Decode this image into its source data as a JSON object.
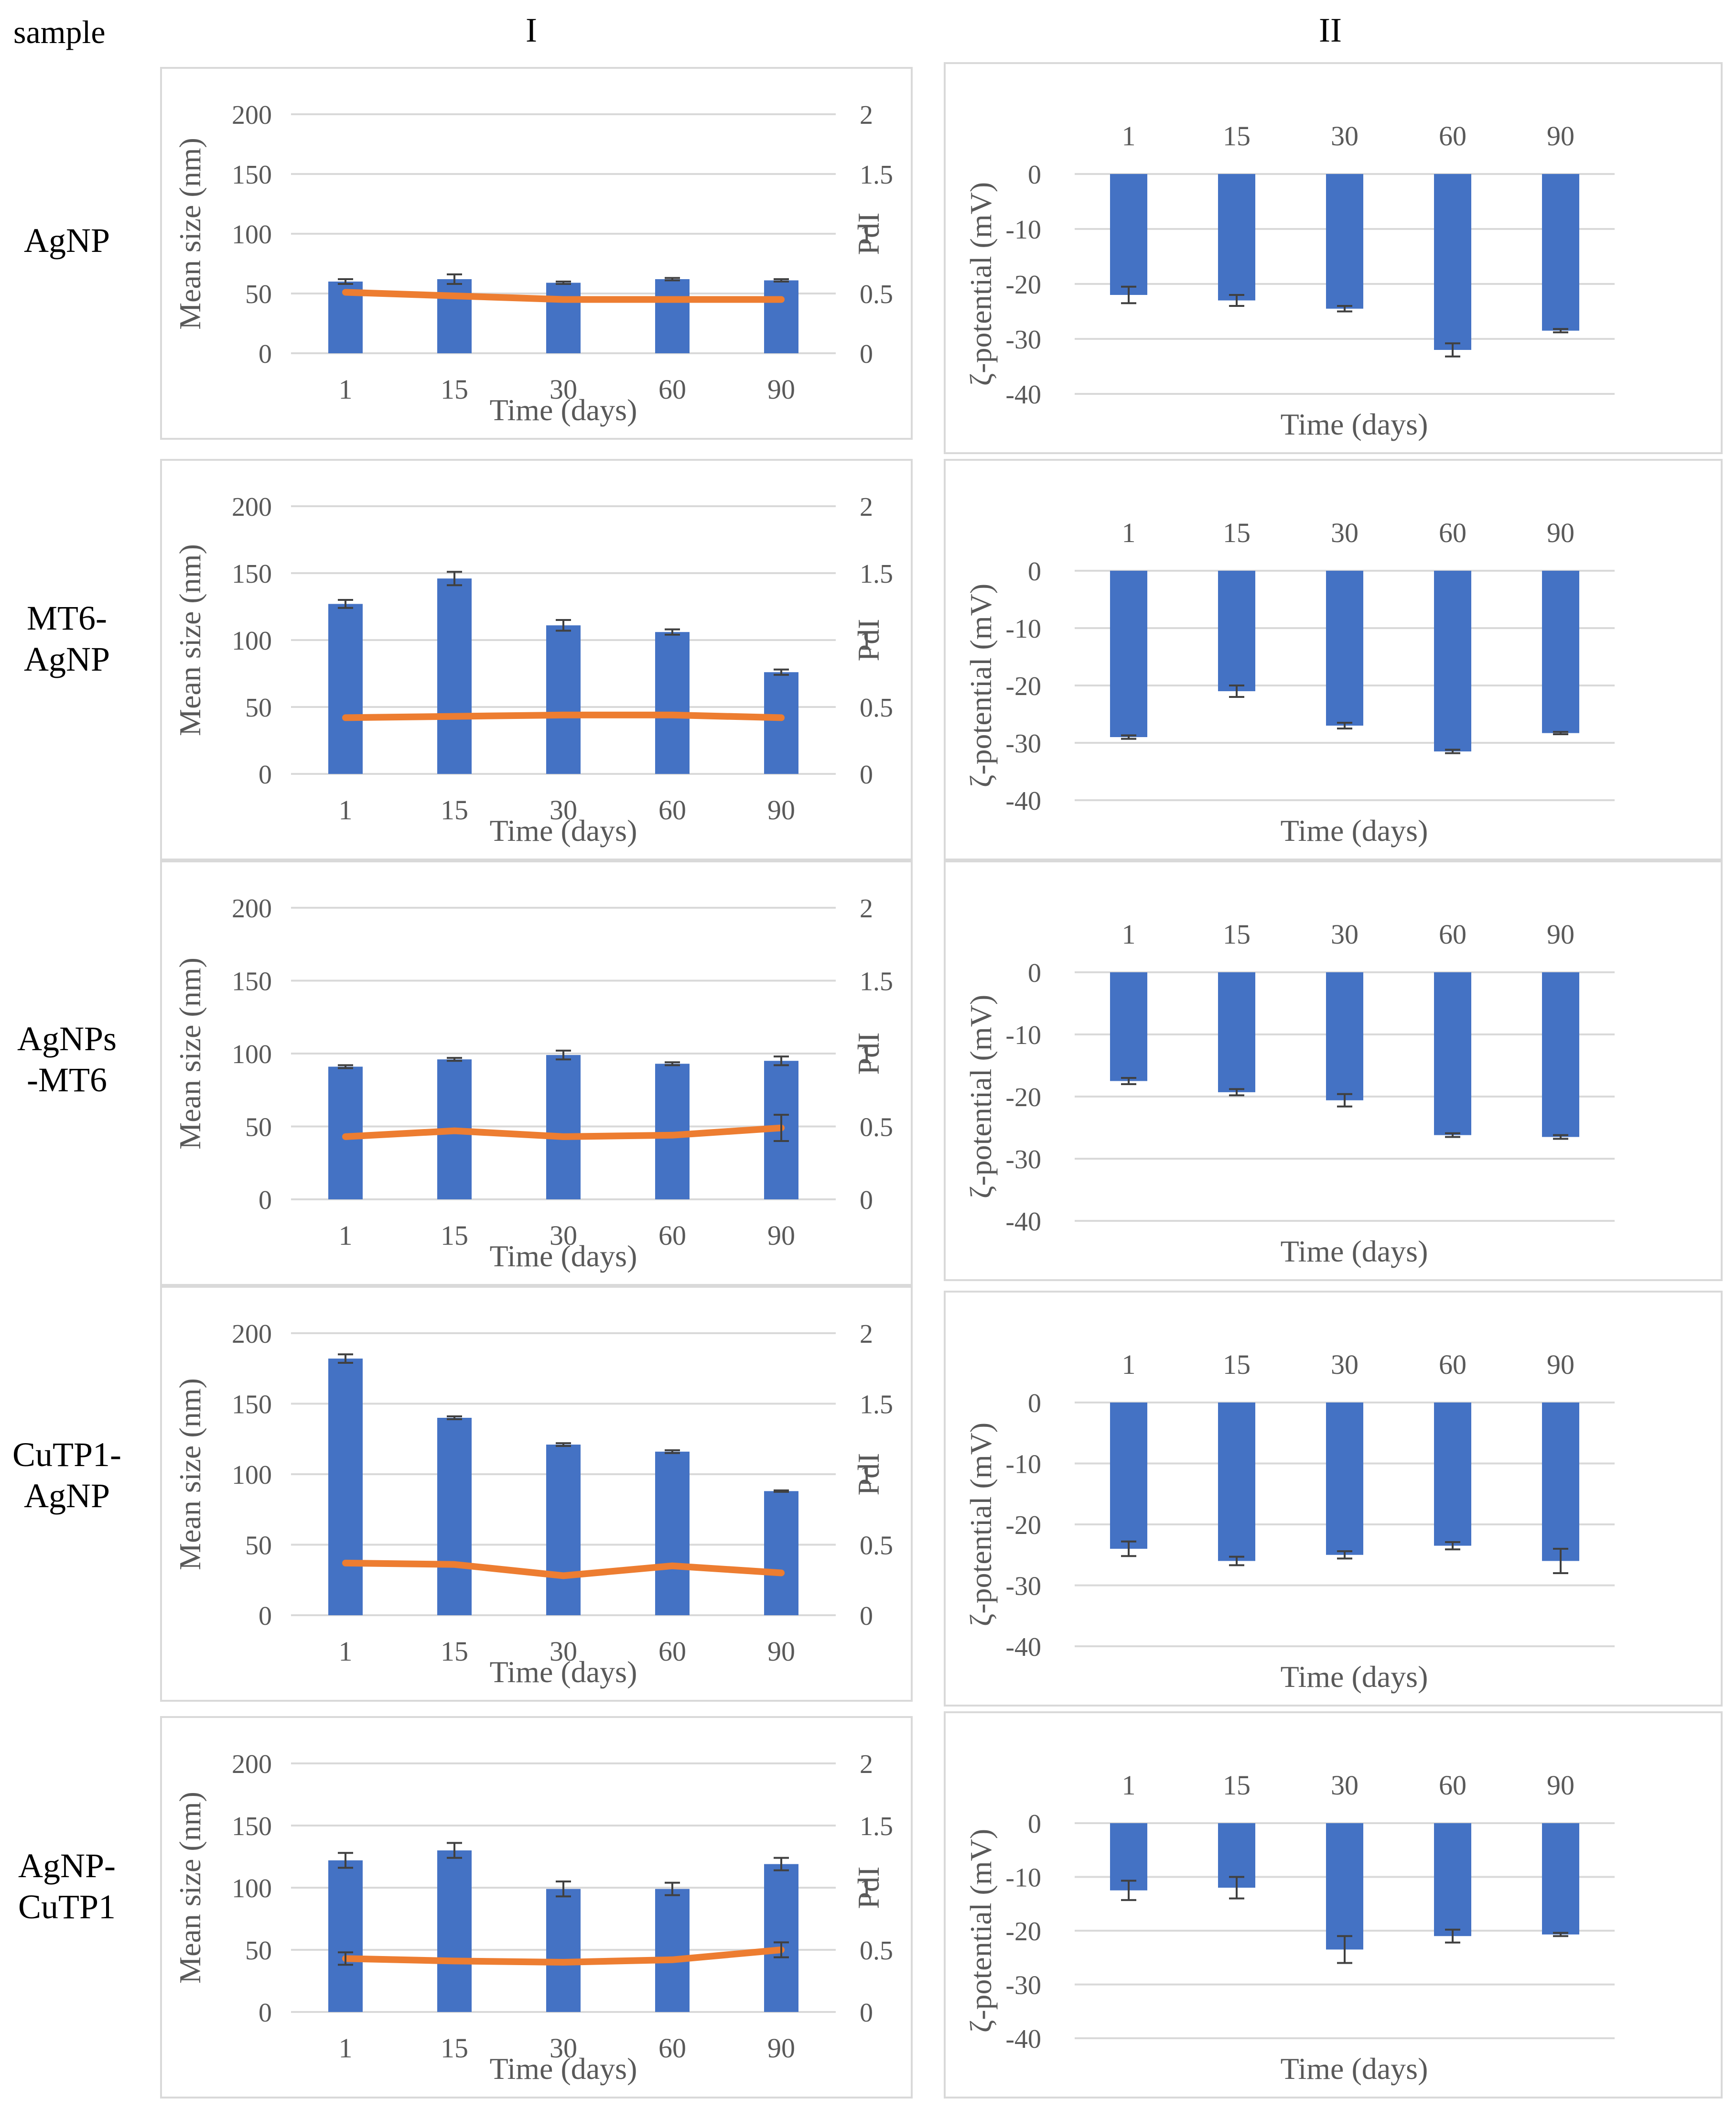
{
  "headers": {
    "sample": "sample",
    "col1": "I",
    "col2": "II"
  },
  "colors": {
    "bar": "#4472c4",
    "line": "#ed7d31",
    "error": "#404040",
    "grid": "#d9d9d9"
  },
  "chart_data": [
    {
      "sample": "AgNP",
      "size_pdi": {
        "type": "bar",
        "categories": [
          "1",
          "15",
          "30",
          "60",
          "90"
        ],
        "series": [
          {
            "name": "Mean size (nm)",
            "values": [
              60,
              62,
              59,
              62,
              61
            ],
            "errors": [
              2,
              4,
              1,
              1,
              1
            ]
          },
          {
            "name": "PdI",
            "type": "line",
            "values": [
              0.51,
              0.48,
              0.45,
              0.45,
              0.45
            ]
          }
        ],
        "xlabel": "Time (days)",
        "ylabel": "Mean size (nm)",
        "y2label": "PdI",
        "ylim": [
          0,
          200
        ],
        "y2lim": [
          0,
          2
        ],
        "yticks": [
          "200",
          "150",
          "100",
          "50",
          "0"
        ],
        "y2ticks": [
          "2",
          "1.5",
          "1",
          "0.5",
          "0"
        ]
      },
      "zeta": {
        "type": "bar",
        "categories": [
          "1",
          "15",
          "30",
          "60",
          "90"
        ],
        "series": [
          {
            "name": "ζ-potential (mV)",
            "values": [
              -22,
              -23,
              -24.5,
              -32,
              -28.5
            ],
            "errors": [
              1.5,
              1,
              0.5,
              1.2,
              0.3
            ]
          }
        ],
        "xlabel": "Time (days)",
        "ylabel": "ζ-potential (mV)",
        "ylim": [
          -40,
          0
        ],
        "yticks": [
          "0",
          "-10",
          "-20",
          "-30",
          "-40"
        ]
      }
    },
    {
      "sample": "MT6-\nAgNP",
      "size_pdi": {
        "type": "bar",
        "categories": [
          "1",
          "15",
          "30",
          "60",
          "90"
        ],
        "series": [
          {
            "name": "Mean size (nm)",
            "values": [
              127,
              146,
              111,
              106,
              76
            ],
            "errors": [
              3,
              5,
              4,
              2,
              2
            ]
          },
          {
            "name": "PdI",
            "type": "line",
            "values": [
              0.42,
              0.43,
              0.44,
              0.44,
              0.42
            ]
          }
        ],
        "xlabel": "Time (days)",
        "ylabel": "Mean size (nm)",
        "y2label": "PdI",
        "ylim": [
          0,
          200
        ],
        "y2lim": [
          0,
          2
        ],
        "yticks": [
          "200",
          "150",
          "100",
          "50",
          "0"
        ],
        "y2ticks": [
          "2",
          "1.5",
          "1",
          "0.5",
          "0"
        ]
      },
      "zeta": {
        "type": "bar",
        "categories": [
          "1",
          "15",
          "30",
          "60",
          "90"
        ],
        "series": [
          {
            "name": "ζ-potential (mV)",
            "values": [
              -29,
              -21,
              -27,
              -31.5,
              -28.3
            ],
            "errors": [
              0.3,
              1,
              0.5,
              0.3,
              0.2
            ]
          }
        ],
        "xlabel": "Time (days)",
        "ylabel": "ζ-potential (mV)",
        "ylim": [
          -40,
          0
        ],
        "yticks": [
          "0",
          "-10",
          "-20",
          "-30",
          "-40"
        ]
      }
    },
    {
      "sample": "AgNPs\n-MT6",
      "size_pdi": {
        "type": "bar",
        "categories": [
          "1",
          "15",
          "30",
          "60",
          "90"
        ],
        "series": [
          {
            "name": "Mean size (nm)",
            "values": [
              91,
              96,
              99,
              93,
              95
            ],
            "errors": [
              1,
              1,
              3,
              1,
              3
            ]
          },
          {
            "name": "PdI",
            "type": "line",
            "values": [
              0.43,
              0.47,
              0.43,
              0.44,
              0.49
            ],
            "errors": [
              0,
              0,
              0,
              0,
              0.09
            ]
          }
        ],
        "xlabel": "Time (days)",
        "ylabel": "Mean size (nm)",
        "y2label": "PdI",
        "ylim": [
          0,
          200
        ],
        "y2lim": [
          0,
          2
        ],
        "yticks": [
          "200",
          "150",
          "100",
          "50",
          "0"
        ],
        "y2ticks": [
          "2",
          "1.5",
          "1",
          "0.5",
          "0"
        ]
      },
      "zeta": {
        "type": "bar",
        "categories": [
          "1",
          "15",
          "30",
          "60",
          "90"
        ],
        "series": [
          {
            "name": "ζ-potential (mV)",
            "values": [
              -17.5,
              -19.3,
              -20.6,
              -26.2,
              -26.5
            ],
            "errors": [
              0.5,
              0.5,
              1,
              0.3,
              0.3
            ]
          }
        ],
        "xlabel": "Time (days)",
        "ylabel": "ζ-potential (mV)",
        "ylim": [
          -40,
          0
        ],
        "yticks": [
          "0",
          "-10",
          "-20",
          "-30",
          "-40"
        ]
      }
    },
    {
      "sample": "CuTP1-\nAgNP",
      "size_pdi": {
        "type": "bar",
        "categories": [
          "1",
          "15",
          "30",
          "60",
          "90"
        ],
        "series": [
          {
            "name": "Mean size (nm)",
            "values": [
              182,
              140,
              121,
              116,
              88
            ],
            "errors": [
              3,
              1,
              1,
              1,
              0.5
            ]
          },
          {
            "name": "PdI",
            "type": "line",
            "values": [
              0.37,
              0.36,
              0.28,
              0.35,
              0.3
            ]
          }
        ],
        "xlabel": "Time (days)",
        "ylabel": "Mean size (nm)",
        "y2label": "PdI",
        "ylim": [
          0,
          200
        ],
        "y2lim": [
          0,
          2
        ],
        "yticks": [
          "200",
          "150",
          "100",
          "50",
          "0"
        ],
        "y2ticks": [
          "2",
          "1.5",
          "1",
          "0.5",
          "0"
        ]
      },
      "zeta": {
        "type": "bar",
        "categories": [
          "1",
          "15",
          "30",
          "60",
          "90"
        ],
        "series": [
          {
            "name": "ζ-potential (mV)",
            "values": [
              -24,
              -26,
              -25,
              -23.5,
              -26
            ],
            "errors": [
              1.2,
              0.7,
              0.6,
              0.6,
              2
            ]
          }
        ],
        "xlabel": "Time (days)",
        "ylabel": "ζ-potential (mV)",
        "ylim": [
          -40,
          0
        ],
        "yticks": [
          "0",
          "-10",
          "-20",
          "-30",
          "-40"
        ]
      }
    },
    {
      "sample": "AgNP-\nCuTP1",
      "size_pdi": {
        "type": "bar",
        "categories": [
          "1",
          "15",
          "30",
          "60",
          "90"
        ],
        "series": [
          {
            "name": "Mean size (nm)",
            "values": [
              122,
              130,
              99,
              99,
              119
            ],
            "errors": [
              6,
              6,
              6,
              5,
              5
            ]
          },
          {
            "name": "PdI",
            "type": "line",
            "values": [
              0.43,
              0.41,
              0.4,
              0.42,
              0.5
            ],
            "errors": [
              0.05,
              0,
              0,
              0,
              0.06
            ]
          }
        ],
        "xlabel": "Time (days)",
        "ylabel": "Mean size (nm)",
        "y2label": "PdI",
        "ylim": [
          0,
          200
        ],
        "y2lim": [
          0,
          2
        ],
        "yticks": [
          "200",
          "150",
          "100",
          "50",
          "0"
        ],
        "y2ticks": [
          "2",
          "1.5",
          "1",
          "0.5",
          "0"
        ]
      },
      "zeta": {
        "type": "bar",
        "categories": [
          "1",
          "15",
          "30",
          "60",
          "90"
        ],
        "series": [
          {
            "name": "ζ-potential (mV)",
            "values": [
              -12.5,
              -12,
              -23.5,
              -21,
              -20.7
            ],
            "errors": [
              1.8,
              2,
              2.5,
              1.2,
              0.3
            ]
          }
        ],
        "xlabel": "Time (days)",
        "ylabel": "ζ-potential (mV)",
        "ylim": [
          -40,
          0
        ],
        "yticks": [
          "0",
          "-10",
          "-20",
          "-30",
          "-40"
        ]
      }
    }
  ]
}
